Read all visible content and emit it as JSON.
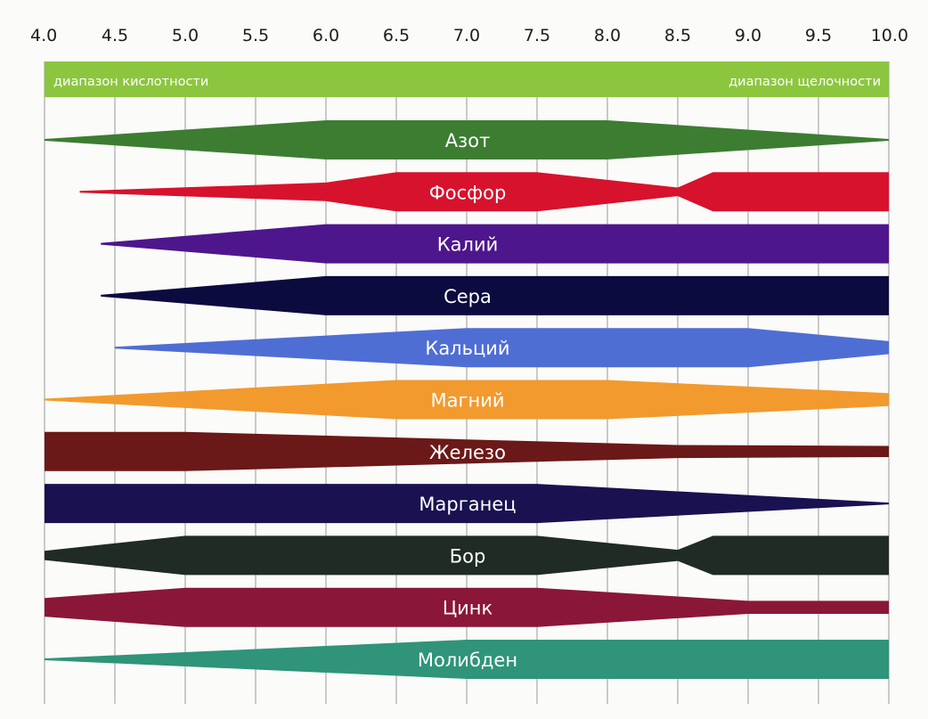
{
  "chart_data": {
    "type": "area",
    "x_ticks": [
      "4.0",
      "4.5",
      "5.0",
      "5.5",
      "6.0",
      "6.5",
      "7.0",
      "7.5",
      "8.0",
      "8.5",
      "9.0",
      "9.5",
      "10.0"
    ],
    "xlim": [
      4.0,
      10.0
    ],
    "grid": true,
    "scale_band": {
      "left_label": "диапазон кислотности",
      "right_label": "диапазон щелочности",
      "color": "#8cc63f"
    },
    "series": [
      {
        "name": "Азот",
        "color": "#3c7d32",
        "profile": [
          [
            4.0,
            0.0
          ],
          [
            6.0,
            1.0
          ],
          [
            8.0,
            1.0
          ],
          [
            10.0,
            0.0
          ]
        ]
      },
      {
        "name": "Фосфор",
        "color": "#d7122d",
        "profile": [
          [
            4.25,
            0.0
          ],
          [
            6.0,
            0.45
          ],
          [
            6.5,
            1.0
          ],
          [
            7.5,
            1.0
          ],
          [
            8.5,
            0.18
          ],
          [
            8.75,
            1.0
          ],
          [
            10.0,
            1.0
          ]
        ]
      },
      {
        "name": "Калий",
        "color": "#4e168c",
        "profile": [
          [
            4.4,
            0.0
          ],
          [
            6.0,
            1.0
          ],
          [
            10.0,
            1.0
          ]
        ]
      },
      {
        "name": "Сера",
        "color": "#0b0b3f",
        "profile": [
          [
            4.4,
            0.0
          ],
          [
            6.0,
            1.0
          ],
          [
            10.0,
            1.0
          ]
        ]
      },
      {
        "name": "Кальций",
        "color": "#4f6ed4",
        "profile": [
          [
            4.5,
            0.0
          ],
          [
            7.0,
            1.0
          ],
          [
            9.0,
            1.0
          ],
          [
            10.0,
            0.3
          ]
        ]
      },
      {
        "name": "Магний",
        "color": "#f29a2e",
        "profile": [
          [
            4.0,
            0.0
          ],
          [
            6.5,
            1.0
          ],
          [
            8.0,
            1.0
          ],
          [
            10.0,
            0.3
          ]
        ]
      },
      {
        "name": "Железо",
        "color": "#6b1818",
        "profile": [
          [
            4.0,
            1.0
          ],
          [
            5.0,
            1.0
          ],
          [
            7.0,
            0.6
          ],
          [
            8.5,
            0.3
          ],
          [
            10.0,
            0.25
          ]
        ]
      },
      {
        "name": "Марганец",
        "color": "#1a1150",
        "profile": [
          [
            4.0,
            1.0
          ],
          [
            5.0,
            1.0
          ],
          [
            7.5,
            1.0
          ],
          [
            10.0,
            0.0
          ]
        ]
      },
      {
        "name": "Бор",
        "color": "#1f2b24",
        "profile": [
          [
            4.0,
            0.2
          ],
          [
            5.0,
            1.0
          ],
          [
            7.5,
            1.0
          ],
          [
            8.5,
            0.25
          ],
          [
            8.75,
            1.0
          ],
          [
            10.0,
            1.0
          ]
        ]
      },
      {
        "name": "Цинк",
        "color": "#8a1738",
        "profile": [
          [
            4.0,
            0.45
          ],
          [
            5.0,
            1.0
          ],
          [
            7.5,
            1.0
          ],
          [
            9.0,
            0.3
          ],
          [
            10.0,
            0.3
          ]
        ]
      },
      {
        "name": "Молибден",
        "color": "#2f9479",
        "profile": [
          [
            4.0,
            0.0
          ],
          [
            7.0,
            1.0
          ],
          [
            10.0,
            1.0
          ]
        ]
      }
    ]
  }
}
